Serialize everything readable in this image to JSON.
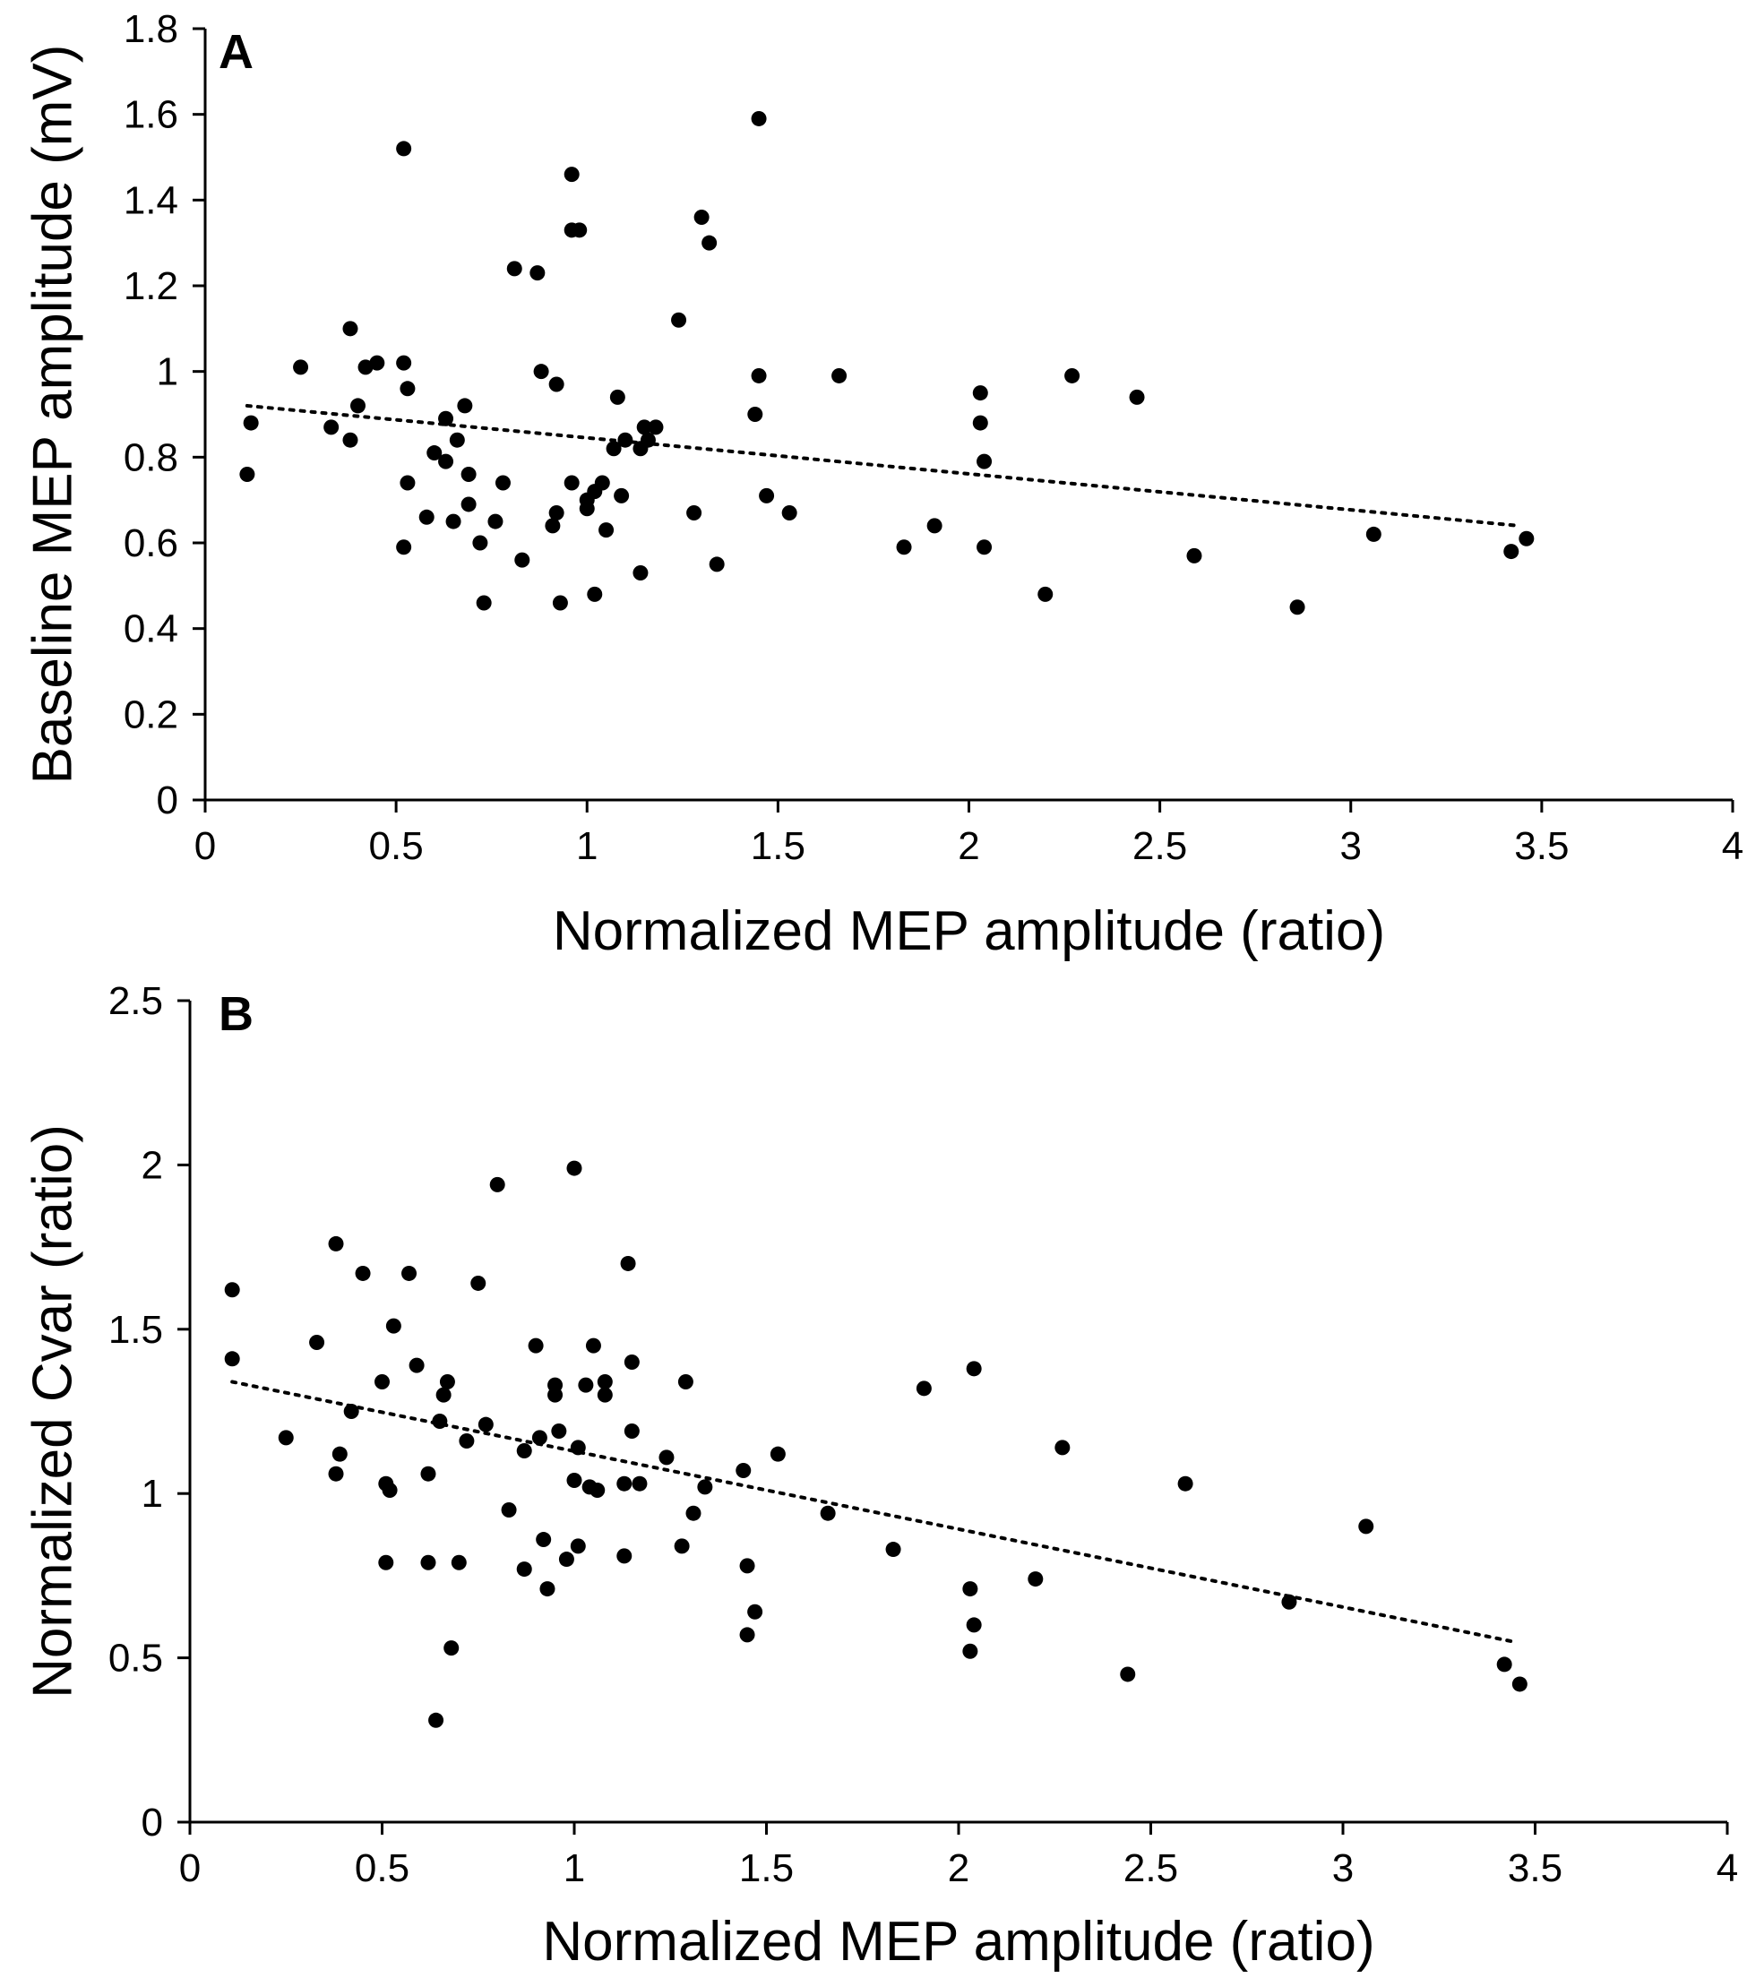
{
  "chart_data": [
    {
      "type": "scatter",
      "panel_label": "A",
      "title": "",
      "xlabel": "Normalized MEP amplitude (ratio)",
      "ylabel": "Baseline MEP amplitude (mV)",
      "xlim": [
        0,
        4
      ],
      "ylim": [
        0,
        1.8
      ],
      "xticks": [
        0,
        0.5,
        1,
        1.5,
        2,
        2.5,
        3,
        3.5,
        4
      ],
      "yticks": [
        0,
        0.2,
        0.4,
        0.6,
        0.8,
        1,
        1.2,
        1.4,
        1.6,
        1.8
      ],
      "xtick_labels": [
        "0",
        "0.5",
        "1",
        "1.5",
        "2",
        "2.5",
        "3",
        "3.5",
        "4"
      ],
      "ytick_labels": [
        "0",
        "0.2",
        "0.4",
        "0.6",
        "0.8",
        "1",
        "1.2",
        "1.4",
        "1.6",
        "1.8"
      ],
      "grid": false,
      "points": [
        [
          0.11,
          0.76
        ],
        [
          0.12,
          0.88
        ],
        [
          0.25,
          1.01
        ],
        [
          0.33,
          0.87
        ],
        [
          0.38,
          1.1
        ],
        [
          0.38,
          0.84
        ],
        [
          0.4,
          0.92
        ],
        [
          0.42,
          1.01
        ],
        [
          0.45,
          1.02
        ],
        [
          0.52,
          1.52
        ],
        [
          0.52,
          1.02
        ],
        [
          0.53,
          0.96
        ],
        [
          0.53,
          0.74
        ],
        [
          0.52,
          0.59
        ],
        [
          0.58,
          0.66
        ],
        [
          0.6,
          0.81
        ],
        [
          0.63,
          0.89
        ],
        [
          0.63,
          0.79
        ],
        [
          0.65,
          0.65
        ],
        [
          0.66,
          0.84
        ],
        [
          0.68,
          0.92
        ],
        [
          0.69,
          0.76
        ],
        [
          0.69,
          0.69
        ],
        [
          0.72,
          0.6
        ],
        [
          0.73,
          0.46
        ],
        [
          0.76,
          0.65
        ],
        [
          0.78,
          0.74
        ],
        [
          0.81,
          1.24
        ],
        [
          0.83,
          0.56
        ],
        [
          0.87,
          1.23
        ],
        [
          0.88,
          1.0
        ],
        [
          0.91,
          0.64
        ],
        [
          0.92,
          0.97
        ],
        [
          0.92,
          0.67
        ],
        [
          0.93,
          0.46
        ],
        [
          0.96,
          1.46
        ],
        [
          0.96,
          1.33
        ],
        [
          0.96,
          0.74
        ],
        [
          0.98,
          1.33
        ],
        [
          1.0,
          0.68
        ],
        [
          1.0,
          0.7
        ],
        [
          1.02,
          0.72
        ],
        [
          1.02,
          0.48
        ],
        [
          1.04,
          0.74
        ],
        [
          1.05,
          0.63
        ],
        [
          1.07,
          0.82
        ],
        [
          1.08,
          0.94
        ],
        [
          1.09,
          0.71
        ],
        [
          1.1,
          0.84
        ],
        [
          1.14,
          0.82
        ],
        [
          1.14,
          0.53
        ],
        [
          1.15,
          0.87
        ],
        [
          1.16,
          0.84
        ],
        [
          1.18,
          0.87
        ],
        [
          1.24,
          1.12
        ],
        [
          1.28,
          0.67
        ],
        [
          1.3,
          1.36
        ],
        [
          1.32,
          1.3
        ],
        [
          1.34,
          0.55
        ],
        [
          1.44,
          0.9
        ],
        [
          1.45,
          0.99
        ],
        [
          1.45,
          1.59
        ],
        [
          1.47,
          0.71
        ],
        [
          1.53,
          0.67
        ],
        [
          1.66,
          0.99
        ],
        [
          1.83,
          0.59
        ],
        [
          1.91,
          0.64
        ],
        [
          2.03,
          0.95
        ],
        [
          2.03,
          0.88
        ],
        [
          2.04,
          0.79
        ],
        [
          2.04,
          0.59
        ],
        [
          2.2,
          0.48
        ],
        [
          2.27,
          0.99
        ],
        [
          2.44,
          0.94
        ],
        [
          2.59,
          0.57
        ],
        [
          2.86,
          0.45
        ],
        [
          3.06,
          0.62
        ],
        [
          3.42,
          0.58
        ],
        [
          3.46,
          0.61
        ]
      ],
      "trendline": {
        "style": "dotted",
        "x": [
          0.11,
          3.44
        ],
        "y": [
          0.92,
          0.64
        ]
      }
    },
    {
      "type": "scatter",
      "panel_label": "B",
      "title": "",
      "xlabel": "Normalized MEP amplitude (ratio)",
      "ylabel": "Normalized Cvar (ratio)",
      "xlim": [
        0,
        4
      ],
      "ylim": [
        0,
        2.5
      ],
      "xticks": [
        0,
        0.5,
        1,
        1.5,
        2,
        2.5,
        3,
        3.5,
        4
      ],
      "yticks": [
        0,
        0.5,
        1,
        1.5,
        2,
        2.5
      ],
      "xtick_labels": [
        "0",
        "0.5",
        "1",
        "1.5",
        "2",
        "2.5",
        "3",
        "3.5",
        "4"
      ],
      "ytick_labels": [
        "0",
        "0.5",
        "1",
        "1.5",
        "2",
        "2.5"
      ],
      "grid": false,
      "points": [
        [
          0.11,
          1.62
        ],
        [
          0.11,
          1.41
        ],
        [
          0.25,
          1.17
        ],
        [
          0.33,
          1.46
        ],
        [
          0.38,
          1.76
        ],
        [
          0.38,
          1.06
        ],
        [
          0.39,
          1.12
        ],
        [
          0.42,
          1.25
        ],
        [
          0.45,
          1.67
        ],
        [
          0.5,
          1.34
        ],
        [
          0.51,
          1.03
        ],
        [
          0.51,
          0.79
        ],
        [
          0.52,
          1.01
        ],
        [
          0.53,
          1.51
        ],
        [
          0.57,
          1.67
        ],
        [
          0.59,
          1.39
        ],
        [
          0.62,
          1.06
        ],
        [
          0.62,
          0.79
        ],
        [
          0.64,
          0.31
        ],
        [
          0.65,
          1.22
        ],
        [
          0.66,
          1.3
        ],
        [
          0.67,
          1.34
        ],
        [
          0.68,
          0.53
        ],
        [
          0.7,
          0.79
        ],
        [
          0.72,
          1.16
        ],
        [
          0.75,
          1.64
        ],
        [
          0.77,
          1.21
        ],
        [
          0.8,
          1.94
        ],
        [
          0.83,
          0.95
        ],
        [
          0.87,
          1.13
        ],
        [
          0.87,
          0.77
        ],
        [
          0.9,
          1.45
        ],
        [
          0.91,
          1.17
        ],
        [
          0.92,
          0.86
        ],
        [
          0.93,
          0.71
        ],
        [
          0.95,
          1.33
        ],
        [
          0.95,
          1.3
        ],
        [
          0.96,
          1.19
        ],
        [
          0.98,
          0.8
        ],
        [
          1.0,
          1.99
        ],
        [
          1.0,
          1.04
        ],
        [
          1.01,
          1.14
        ],
        [
          1.01,
          0.84
        ],
        [
          1.03,
          1.33
        ],
        [
          1.04,
          1.02
        ],
        [
          1.05,
          1.45
        ],
        [
          1.06,
          1.01
        ],
        [
          1.08,
          1.3
        ],
        [
          1.08,
          1.34
        ],
        [
          1.13,
          1.03
        ],
        [
          1.13,
          0.81
        ],
        [
          1.14,
          1.7
        ],
        [
          1.15,
          1.4
        ],
        [
          1.15,
          1.19
        ],
        [
          1.17,
          1.03
        ],
        [
          1.24,
          1.11
        ],
        [
          1.28,
          0.84
        ],
        [
          1.29,
          1.34
        ],
        [
          1.31,
          0.94
        ],
        [
          1.34,
          1.02
        ],
        [
          1.44,
          1.07
        ],
        [
          1.45,
          0.78
        ],
        [
          1.45,
          0.57
        ],
        [
          1.47,
          0.64
        ],
        [
          1.53,
          1.12
        ],
        [
          1.66,
          0.94
        ],
        [
          1.83,
          0.83
        ],
        [
          1.91,
          1.32
        ],
        [
          2.03,
          0.71
        ],
        [
          2.03,
          0.52
        ],
        [
          2.04,
          1.38
        ],
        [
          2.04,
          0.6
        ],
        [
          2.2,
          0.74
        ],
        [
          2.27,
          1.14
        ],
        [
          2.44,
          0.45
        ],
        [
          2.59,
          1.03
        ],
        [
          2.86,
          0.67
        ],
        [
          3.06,
          0.9
        ],
        [
          3.42,
          0.48
        ],
        [
          3.46,
          0.42
        ]
      ],
      "trendline": {
        "style": "dotted",
        "x": [
          0.11,
          3.44
        ],
        "y": [
          1.34,
          0.55
        ]
      }
    }
  ]
}
